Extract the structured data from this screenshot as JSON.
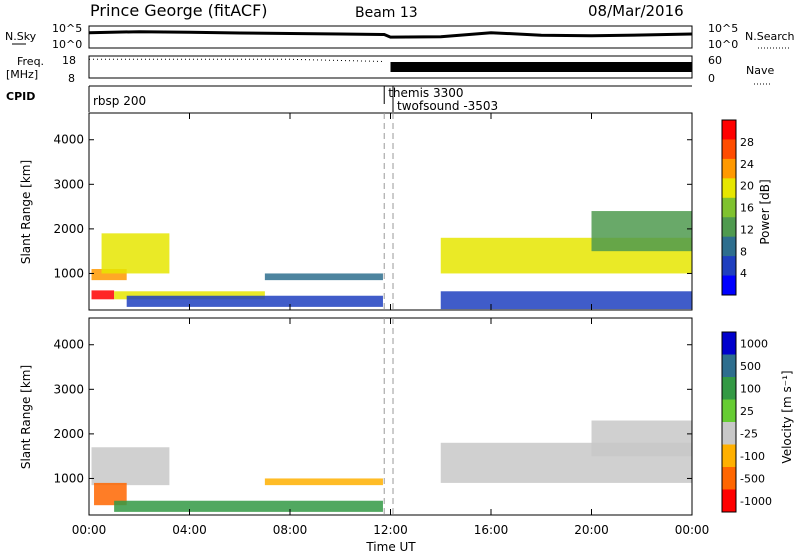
{
  "header": {
    "station": "Prince George (fitACF)",
    "beam": "Beam 13",
    "date": "08/Mar/2016"
  },
  "colors": {
    "power_scale": [
      "#0000ff",
      "#1f3fbf",
      "#2e6e8e",
      "#4f9a4f",
      "#7fc22f",
      "#e6e600",
      "#ff9900",
      "#ff4c00",
      "#ff0000"
    ],
    "velocity_scale": [
      "#ff0000",
      "#ff6600",
      "#ffb000",
      "#c8c8c8",
      "#66cc33",
      "#339944",
      "#2e6e8e",
      "#0000cc"
    ]
  },
  "chart_data": [
    {
      "id": "nsky-nsearch",
      "type": "line",
      "ylabel_left": "N.Sky",
      "ylabel_right": "N.Search",
      "yticks": [
        "10^5",
        "10^0"
      ],
      "yscale": "log",
      "series": [
        {
          "x": [
            0,
            2,
            4,
            6,
            8,
            10,
            11.75,
            12,
            14,
            16,
            18,
            20,
            22,
            24
          ],
          "y": [
            3000,
            5000,
            4000,
            2500,
            2000,
            1500,
            1200,
            300,
            350,
            3000,
            800,
            600,
            900,
            1500
          ]
        }
      ]
    },
    {
      "id": "freq-nave",
      "type": "line",
      "ylabel_left": "Freq.",
      "ylabel_left_unit": "[MHz]",
      "ylabel_right": "Nave",
      "yticks_left": [
        "18",
        "8"
      ],
      "yticks_right": [
        "60",
        "0"
      ],
      "series": [
        {
          "x": [
            0,
            4,
            8,
            11.75
          ],
          "y": [
            16.5,
            16.5,
            16.5,
            15.5
          ]
        },
        {
          "x": [
            12,
            24
          ],
          "y": [
            13,
            13
          ]
        }
      ]
    },
    {
      "id": "cpid",
      "type": "table",
      "label": "CPID",
      "entries": [
        {
          "start": 0,
          "name": "rbsp",
          "cpid": "200"
        },
        {
          "start": 11.75,
          "name": "themis",
          "cpid": "3300"
        },
        {
          "start": 12.1,
          "name": "twofsound",
          "cpid": "-3503"
        }
      ]
    },
    {
      "id": "power",
      "type": "heatmap",
      "ylabel": "Slant Range [km]",
      "ylim": [
        180,
        4600
      ],
      "yticks": [
        1000,
        2000,
        3000,
        4000
      ],
      "xlim": [
        0,
        24
      ],
      "colorbar": {
        "label": "Power [dB]",
        "ticks": [
          4,
          8,
          12,
          16,
          20,
          24,
          28
        ],
        "range": [
          0,
          32
        ]
      },
      "bands": [
        {
          "t0": 0.1,
          "t1": 1.5,
          "r0": 850,
          "r1": 1100,
          "value": 22
        },
        {
          "t0": 0.5,
          "t1": 3.2,
          "r0": 1000,
          "r1": 1900,
          "value": 18
        },
        {
          "t0": 0.1,
          "t1": 1.0,
          "r0": 420,
          "r1": 620,
          "value": 30
        },
        {
          "t0": 1.0,
          "t1": 7.0,
          "r0": 420,
          "r1": 600,
          "value": 20
        },
        {
          "t0": 7.0,
          "t1": 11.7,
          "r0": 850,
          "r1": 1000,
          "value": 8
        },
        {
          "t0": 1.5,
          "t1": 11.7,
          "r0": 250,
          "r1": 500,
          "value": 5
        },
        {
          "t0": 14.0,
          "t1": 24.0,
          "r0": 1000,
          "r1": 1800,
          "value": 20
        },
        {
          "t0": 20.0,
          "t1": 24.0,
          "r0": 1500,
          "r1": 2400,
          "value": 14
        },
        {
          "t0": 14.0,
          "t1": 24.0,
          "r0": 200,
          "r1": 600,
          "value": 4
        }
      ]
    },
    {
      "id": "velocity",
      "type": "heatmap",
      "xlabel": "Time UT",
      "xticks": [
        "00:00",
        "04:00",
        "08:00",
        "12:00",
        "16:00",
        "20:00",
        "00:00"
      ],
      "xlim": [
        0,
        24
      ],
      "ylabel": "Slant Range [km]",
      "ylim": [
        180,
        4600
      ],
      "yticks": [
        1000,
        2000,
        3000,
        4000
      ],
      "colorbar": {
        "label": "Velocity [m s⁻¹]",
        "ticks": [
          "1000",
          "500",
          "100",
          "25",
          "-25",
          "-100",
          "-500",
          "-1000"
        ]
      },
      "bands": [
        {
          "t0": 0.1,
          "t1": 3.2,
          "r0": 850,
          "r1": 1700,
          "value": 0
        },
        {
          "t0": 0.2,
          "t1": 1.5,
          "r0": 400,
          "r1": 900,
          "value": -150
        },
        {
          "t0": 1.0,
          "t1": 11.7,
          "r0": 250,
          "r1": 500,
          "value": 150
        },
        {
          "t0": 7.0,
          "t1": 11.7,
          "r0": 850,
          "r1": 1000,
          "value": -50
        },
        {
          "t0": 14.0,
          "t1": 24.0,
          "r0": 900,
          "r1": 1800,
          "value": 0
        },
        {
          "t0": 20.0,
          "t1": 24.0,
          "r0": 1500,
          "r1": 2300,
          "value": 0
        }
      ]
    }
  ]
}
